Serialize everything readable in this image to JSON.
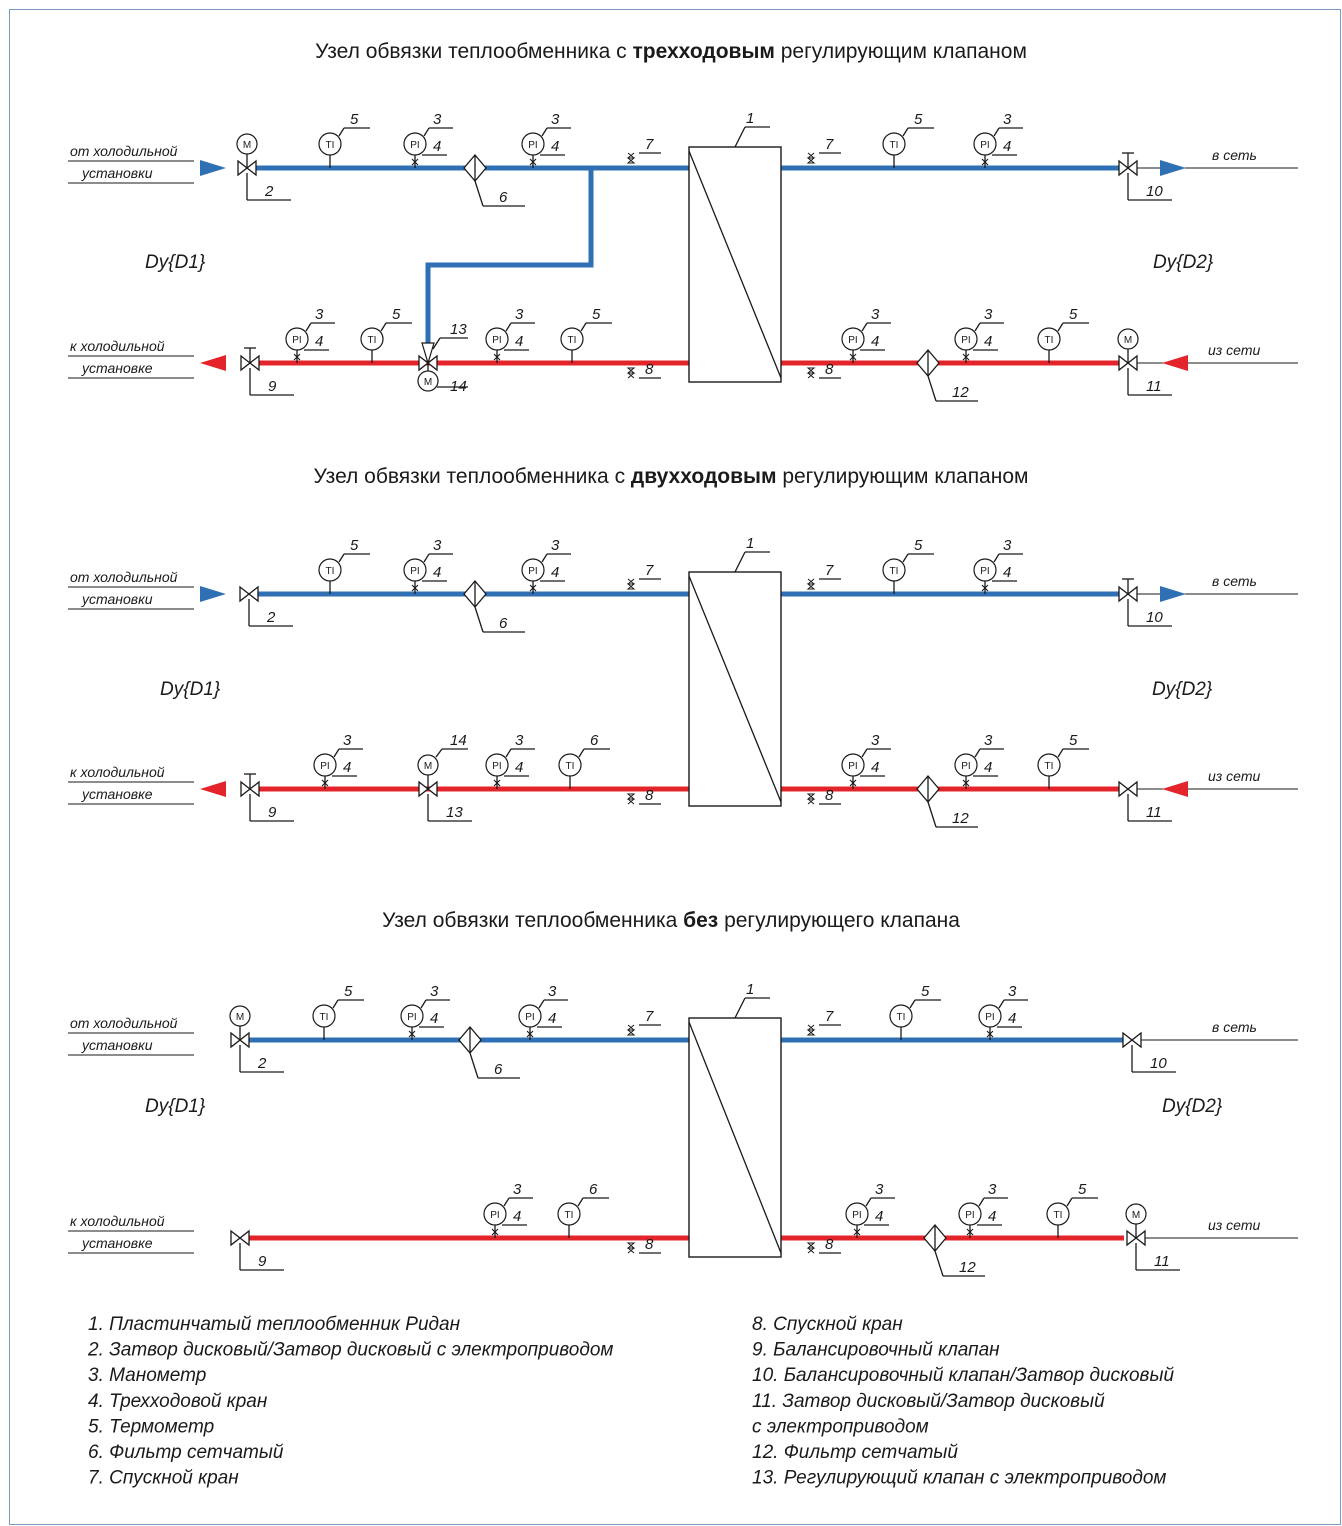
{
  "colors": {
    "supply": "#2f6fb3",
    "return": "#e3252b",
    "frame": "#7a9cc4",
    "line": "#1a1a1a"
  },
  "schemes": [
    {
      "title_pre": "Узел обвязки теплообменника с ",
      "title_bold": "трехходовым",
      "title_post": " регулирующим клапаном",
      "left_top": [
        "от холодильной",
        "установки"
      ],
      "left_bottom": [
        "к холодильной",
        "установке"
      ],
      "right_top": "в сеть",
      "right_bottom": "из сети",
      "dn_left": "Dy{D1}",
      "dn_right": "Dy{D2}",
      "arrows": true
    },
    {
      "title_pre": "Узел обвязки теплообменника с ",
      "title_bold": "двухходовым",
      "title_post": " регулирующим клапаном",
      "left_top": [
        "от холодильной",
        "установки"
      ],
      "left_bottom": [
        "к холодильной",
        "установке"
      ],
      "right_top": "в сеть",
      "right_bottom": "из сети",
      "dn_left": "Dy{D1}",
      "dn_right": "Dy{D2}",
      "arrows": true
    },
    {
      "title_pre": "Узел обвязки теплообменника ",
      "title_bold": "без",
      "title_post": " регулирующего клапана",
      "left_top": [
        "от холодильной",
        "установки"
      ],
      "left_bottom": [
        "к холодильной",
        "установке"
      ],
      "right_top": "в сеть",
      "right_bottom": "из сети",
      "dn_left": "Dy{D1}",
      "dn_right": "Dy{D2}",
      "arrows": false
    }
  ],
  "instrument_labels": {
    "pressure": "PI",
    "temperature": "TI",
    "motor": "M"
  },
  "legend_left": [
    "1.  Пластинчатый теплообменник Ридан",
    "2.  Затвор дисковый/Затвор дисковый с электроприводом",
    "3.  Манометр",
    "4.  Трехходовой кран",
    "5.  Термометр",
    "6.  Фильтр сетчатый",
    "7.  Спускной кран"
  ],
  "legend_right": [
    "8.   Спускной кран",
    "9.   Балансировочный клапан",
    "10.  Балансировочный клапан/Затвор дисковый",
    "11. Затвор дисковый/Затвор дисковый",
    "       с электроприводом",
    "12.  Фильтр сетчатый",
    "13.  Регулирующий клапан с электроприводом"
  ]
}
